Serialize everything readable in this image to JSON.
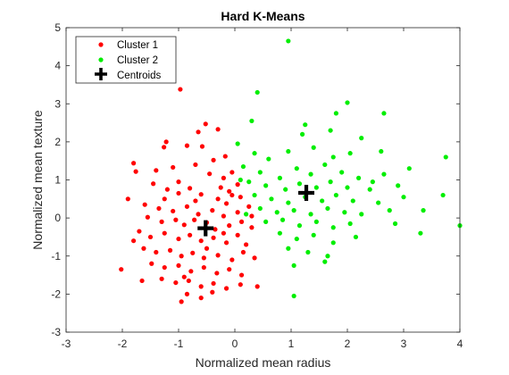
{
  "chart_data": {
    "type": "scatter",
    "title": "Hard K-Means",
    "xlabel": "Normalized mean radius",
    "ylabel": "Normalized mean texture",
    "xlim": [
      -3,
      4
    ],
    "ylim": [
      -3,
      5
    ],
    "xticks": [
      "-3",
      "-2",
      "-1",
      "0",
      "1",
      "2",
      "3",
      "4"
    ],
    "yticks": [
      "-3",
      "-2",
      "-1",
      "0",
      "1",
      "2",
      "3",
      "4",
      "5"
    ],
    "grid": false,
    "legend": {
      "position": "top-left"
    },
    "series": [
      {
        "name": "Cluster 1",
        "color": "#ff0000",
        "points": [
          [
            -0.97,
            3.38
          ],
          [
            -0.52,
            2.47
          ],
          [
            -0.3,
            2.33
          ],
          [
            -0.65,
            2.26
          ],
          [
            -0.85,
            1.9
          ],
          [
            -1.22,
            2.0
          ],
          [
            -1.26,
            1.86
          ],
          [
            -0.58,
            1.88
          ],
          [
            -0.17,
            1.62
          ],
          [
            -0.38,
            1.52
          ],
          [
            -1.8,
            1.44
          ],
          [
            -1.76,
            1.22
          ],
          [
            -1.4,
            1.25
          ],
          [
            -1.1,
            1.33
          ],
          [
            -0.7,
            1.4
          ],
          [
            -0.45,
            1.16
          ],
          [
            -0.2,
            1.05
          ],
          [
            -0.05,
            1.2
          ],
          [
            0.05,
            0.88
          ],
          [
            -0.1,
            0.7
          ],
          [
            -1.45,
            0.9
          ],
          [
            -1.2,
            0.75
          ],
          [
            -1.0,
            0.65
          ],
          [
            -0.8,
            0.78
          ],
          [
            -0.6,
            0.62
          ],
          [
            -0.3,
            0.5
          ],
          [
            -0.15,
            0.38
          ],
          [
            0.1,
            0.55
          ],
          [
            -1.9,
            0.5
          ],
          [
            -1.6,
            0.35
          ],
          [
            -1.35,
            0.25
          ],
          [
            -1.1,
            0.18
          ],
          [
            -0.85,
            0.3
          ],
          [
            -0.65,
            0.1
          ],
          [
            -0.4,
            0.2
          ],
          [
            -0.2,
            0.05
          ],
          [
            0.05,
            0.15
          ],
          [
            0.25,
            0.3
          ],
          [
            -1.55,
            0.02
          ],
          [
            -1.3,
            -0.1
          ],
          [
            -1.05,
            -0.05
          ],
          [
            -0.9,
            -0.18
          ],
          [
            -0.72,
            -0.05
          ],
          [
            -0.5,
            -0.12
          ],
          [
            -0.35,
            -0.3
          ],
          [
            -0.1,
            -0.2
          ],
          [
            0.12,
            -0.1
          ],
          [
            0.3,
            -0.25
          ],
          [
            -1.7,
            -0.35
          ],
          [
            -1.5,
            -0.5
          ],
          [
            -1.25,
            -0.4
          ],
          [
            -1.0,
            -0.55
          ],
          [
            -0.8,
            -0.45
          ],
          [
            -0.6,
            -0.6
          ],
          [
            -0.38,
            -0.52
          ],
          [
            -0.15,
            -0.65
          ],
          [
            0.05,
            -0.45
          ],
          [
            0.2,
            -0.7
          ],
          [
            -1.62,
            -0.8
          ],
          [
            -1.4,
            -0.9
          ],
          [
            -1.15,
            -0.85
          ],
          [
            -0.95,
            -1.0
          ],
          [
            -0.75,
            -0.92
          ],
          [
            -0.55,
            -1.05
          ],
          [
            -0.3,
            -0.98
          ],
          [
            -0.05,
            -1.1
          ],
          [
            0.15,
            -0.9
          ],
          [
            0.35,
            -1.05
          ],
          [
            -1.48,
            -1.2
          ],
          [
            -1.25,
            -1.3
          ],
          [
            -1.0,
            -1.25
          ],
          [
            -0.78,
            -1.4
          ],
          [
            -0.55,
            -1.3
          ],
          [
            -0.32,
            -1.45
          ],
          [
            -0.1,
            -1.35
          ],
          [
            0.12,
            -1.5
          ],
          [
            -1.3,
            -1.6
          ],
          [
            -1.05,
            -1.7
          ],
          [
            -0.82,
            -1.65
          ],
          [
            -0.6,
            -1.8
          ],
          [
            -0.38,
            -1.72
          ],
          [
            -0.15,
            -1.85
          ],
          [
            0.1,
            -1.75
          ],
          [
            -0.85,
            -2.0
          ],
          [
            -0.6,
            -2.1
          ],
          [
            -0.4,
            -1.95
          ],
          [
            -0.95,
            -2.2
          ],
          [
            -2.02,
            -1.35
          ],
          [
            -1.65,
            -1.65
          ],
          [
            0.4,
            -1.8
          ],
          [
            -0.7,
            0.45
          ],
          [
            -0.25,
            0.8
          ],
          [
            -1.0,
            0.95
          ],
          [
            -1.25,
            0.5
          ],
          [
            -0.5,
            -0.8
          ],
          [
            -0.2,
            -0.4
          ],
          [
            0.3,
            0.05
          ],
          [
            -1.8,
            -0.6
          ],
          [
            -0.9,
            -1.55
          ],
          [
            -0.05,
            0.6
          ]
        ]
      },
      {
        "name": "Cluster 2",
        "color": "#00ee00",
        "points": [
          [
            0.95,
            4.65
          ],
          [
            0.4,
            3.3
          ],
          [
            2.0,
            3.03
          ],
          [
            1.8,
            2.75
          ],
          [
            2.65,
            2.75
          ],
          [
            1.25,
            2.45
          ],
          [
            0.3,
            2.55
          ],
          [
            1.2,
            2.2
          ],
          [
            1.7,
            2.3
          ],
          [
            2.25,
            2.1
          ],
          [
            0.05,
            1.95
          ],
          [
            0.35,
            1.7
          ],
          [
            0.6,
            1.55
          ],
          [
            0.95,
            1.75
          ],
          [
            1.4,
            1.85
          ],
          [
            1.75,
            1.6
          ],
          [
            2.05,
            1.7
          ],
          [
            2.6,
            1.75
          ],
          [
            3.75,
            1.6
          ],
          [
            0.15,
            1.35
          ],
          [
            0.45,
            1.2
          ],
          [
            0.8,
            1.05
          ],
          [
            1.1,
            1.3
          ],
          [
            1.35,
            1.15
          ],
          [
            1.6,
            1.4
          ],
          [
            1.9,
            1.2
          ],
          [
            2.2,
            1.05
          ],
          [
            2.65,
            1.15
          ],
          [
            3.1,
            1.3
          ],
          [
            0.25,
            0.95
          ],
          [
            0.55,
            0.85
          ],
          [
            0.9,
            0.75
          ],
          [
            1.15,
            0.9
          ],
          [
            1.45,
            0.8
          ],
          [
            1.7,
            0.95
          ],
          [
            2.0,
            0.8
          ],
          [
            2.4,
            0.75
          ],
          [
            2.9,
            0.85
          ],
          [
            0.35,
            0.6
          ],
          [
            0.65,
            0.5
          ],
          [
            0.95,
            0.4
          ],
          [
            1.25,
            0.55
          ],
          [
            1.55,
            0.45
          ],
          [
            1.8,
            0.6
          ],
          [
            2.1,
            0.45
          ],
          [
            2.55,
            0.4
          ],
          [
            3.7,
            0.6
          ],
          [
            3.0,
            0.55
          ],
          [
            0.45,
            0.25
          ],
          [
            0.75,
            0.15
          ],
          [
            1.05,
            0.2
          ],
          [
            1.35,
            0.1
          ],
          [
            1.65,
            0.25
          ],
          [
            1.95,
            0.15
          ],
          [
            2.25,
            0.1
          ],
          [
            2.75,
            0.2
          ],
          [
            3.35,
            0.2
          ],
          [
            0.55,
            -0.1
          ],
          [
            0.85,
            -0.05
          ],
          [
            1.15,
            -0.2
          ],
          [
            1.45,
            -0.1
          ],
          [
            1.75,
            -0.25
          ],
          [
            2.05,
            -0.15
          ],
          [
            2.85,
            -0.15
          ],
          [
            3.3,
            -0.4
          ],
          [
            0.8,
            -0.4
          ],
          [
            1.1,
            -0.55
          ],
          [
            1.4,
            -0.45
          ],
          [
            1.75,
            -0.65
          ],
          [
            2.15,
            -0.5
          ],
          [
            0.95,
            -0.8
          ],
          [
            1.3,
            -0.9
          ],
          [
            1.65,
            -1.0
          ],
          [
            1.05,
            -1.25
          ],
          [
            1.6,
            -1.15
          ],
          [
            1.05,
            -2.05
          ],
          [
            4.0,
            -0.2
          ],
          [
            0.2,
            0.1
          ],
          [
            0.1,
            1.0
          ],
          [
            2.45,
            0.95
          ]
        ]
      }
    ],
    "centroids": {
      "name": "Centroids",
      "color": "#000000",
      "points": [
        [
          -0.52,
          -0.27
        ],
        [
          1.27,
          0.66
        ]
      ]
    }
  }
}
